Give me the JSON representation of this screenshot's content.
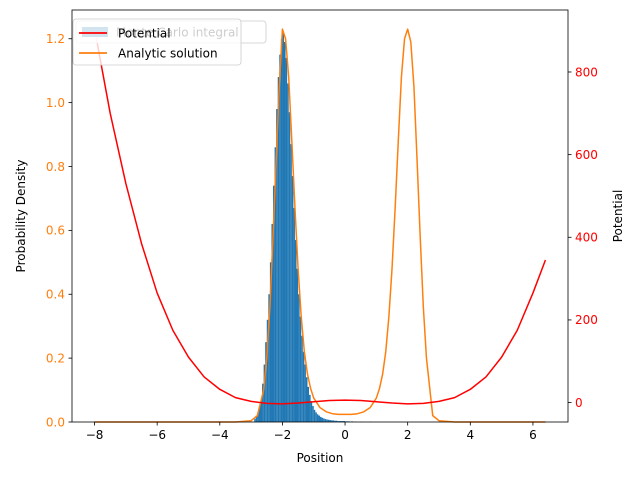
{
  "chart_data": {
    "type": "line",
    "title": "",
    "xlabel": "Position",
    "ylabel": "Probability Density",
    "y2label": "Potential",
    "xlim": [
      -8.72,
      7.12
    ],
    "ylim": [
      0,
      1.29
    ],
    "y2lim": [
      -47,
      950
    ],
    "xticks": [
      -8,
      -6,
      -4,
      -2,
      0,
      2,
      4,
      6
    ],
    "xtick_labels": [
      "−8",
      "−6",
      "−4",
      "−2",
      "0",
      "2",
      "4",
      "6"
    ],
    "yticks": [
      0.0,
      0.2,
      0.4,
      0.6,
      0.8,
      1.0,
      1.2
    ],
    "ytick_labels": [
      "0.0",
      "0.2",
      "0.4",
      "0.6",
      "0.8",
      "1.0",
      "1.2"
    ],
    "y2ticks": [
      0,
      200,
      400,
      600,
      800
    ],
    "y2tick_labels": [
      "0",
      "200",
      "400",
      "600",
      "800"
    ],
    "grid": false,
    "legend_position": "top-left",
    "colors": {
      "histogram": "#1f77b4",
      "analytic": "#ff7f0e",
      "potential": "#ff0000",
      "left_ticks": "#ff7f0e",
      "right_ticks": "#ff0000"
    },
    "legend": [
      {
        "label": "Potential",
        "color": "#ff0000",
        "kind": "line"
      },
      {
        "label": "Monte Carlo integral",
        "color": "#1f77b4",
        "kind": "patch"
      },
      {
        "label": "Analytic solution",
        "color": "#ff7f0e",
        "kind": "line"
      }
    ],
    "series": [
      {
        "name": "Monte Carlo integral",
        "kind": "histogram",
        "axis": "left",
        "bin_width": 0.05,
        "bins": [
          [
            -2.9,
            0.01
          ],
          [
            -2.85,
            0.02
          ],
          [
            -2.8,
            0.03
          ],
          [
            -2.75,
            0.05
          ],
          [
            -2.7,
            0.07
          ],
          [
            -2.65,
            0.12
          ],
          [
            -2.6,
            0.18
          ],
          [
            -2.55,
            0.25
          ],
          [
            -2.5,
            0.32
          ],
          [
            -2.45,
            0.4
          ],
          [
            -2.4,
            0.5
          ],
          [
            -2.35,
            0.62
          ],
          [
            -2.3,
            0.74
          ],
          [
            -2.25,
            0.86
          ],
          [
            -2.2,
            0.98
          ],
          [
            -2.15,
            1.08
          ],
          [
            -2.1,
            1.15
          ],
          [
            -2.05,
            1.2
          ],
          [
            -2.0,
            1.22
          ],
          [
            -1.95,
            1.19
          ],
          [
            -1.9,
            1.14
          ],
          [
            -1.85,
            1.06
          ],
          [
            -1.8,
            0.97
          ],
          [
            -1.75,
            0.87
          ],
          [
            -1.7,
            0.77
          ],
          [
            -1.65,
            0.67
          ],
          [
            -1.6,
            0.57
          ],
          [
            -1.55,
            0.48
          ],
          [
            -1.5,
            0.4
          ],
          [
            -1.45,
            0.33
          ],
          [
            -1.4,
            0.27
          ],
          [
            -1.35,
            0.22
          ],
          [
            -1.3,
            0.18
          ],
          [
            -1.25,
            0.14
          ],
          [
            -1.2,
            0.11
          ],
          [
            -1.15,
            0.085
          ],
          [
            -1.1,
            0.065
          ],
          [
            -1.05,
            0.05
          ],
          [
            -1.0,
            0.038
          ],
          [
            -0.95,
            0.03
          ],
          [
            -0.9,
            0.024
          ],
          [
            -0.85,
            0.02
          ],
          [
            -0.8,
            0.016
          ],
          [
            -0.75,
            0.013
          ],
          [
            -0.7,
            0.011
          ],
          [
            -0.65,
            0.009
          ],
          [
            -0.6,
            0.008
          ],
          [
            -0.55,
            0.007
          ],
          [
            -0.5,
            0.006
          ],
          [
            -0.45,
            0.005
          ],
          [
            -0.4,
            0.005
          ],
          [
            -0.35,
            0.004
          ],
          [
            -0.3,
            0.004
          ],
          [
            -0.25,
            0.003
          ],
          [
            -0.2,
            0.003
          ],
          [
            -0.15,
            0.003
          ],
          [
            -0.1,
            0.003
          ],
          [
            -0.05,
            0.003
          ],
          [
            0.0,
            0.002
          ],
          [
            0.05,
            0.002
          ],
          [
            0.1,
            0.002
          ],
          [
            0.2,
            0.002
          ],
          [
            0.3,
            0.001
          ],
          [
            0.5,
            0.001
          ],
          [
            0.8,
            0.001
          ]
        ]
      },
      {
        "name": "Analytic solution",
        "kind": "line",
        "axis": "left",
        "x": [
          -8.0,
          -3.5,
          -3.0,
          -2.8,
          -2.6,
          -2.5,
          -2.4,
          -2.3,
          -2.2,
          -2.1,
          -2.0,
          -1.9,
          -1.8,
          -1.7,
          -1.6,
          -1.5,
          -1.4,
          -1.3,
          -1.2,
          -1.1,
          -1.0,
          -0.8,
          -0.6,
          -0.4,
          -0.2,
          0.0,
          0.2,
          0.4,
          0.6,
          0.8,
          1.0,
          1.1,
          1.2,
          1.3,
          1.4,
          1.5,
          1.6,
          1.7,
          1.8,
          1.9,
          2.0,
          2.1,
          2.2,
          2.3,
          2.4,
          2.5,
          2.6,
          2.8,
          3.0,
          3.5,
          6.4
        ],
        "y": [
          0.0,
          0.0,
          0.004,
          0.02,
          0.1,
          0.2,
          0.36,
          0.58,
          0.82,
          1.05,
          1.23,
          1.2,
          1.08,
          0.88,
          0.67,
          0.48,
          0.33,
          0.22,
          0.15,
          0.105,
          0.075,
          0.045,
          0.032,
          0.026,
          0.024,
          0.024,
          0.024,
          0.026,
          0.032,
          0.045,
          0.075,
          0.105,
          0.15,
          0.22,
          0.33,
          0.48,
          0.67,
          0.88,
          1.08,
          1.2,
          1.23,
          1.19,
          1.05,
          0.82,
          0.58,
          0.36,
          0.2,
          0.02,
          0.004,
          0.0,
          0.0
        ]
      },
      {
        "name": "Potential",
        "kind": "line",
        "axis": "right",
        "x": [
          -8.0,
          -7.5,
          -7.0,
          -6.5,
          -6.0,
          -5.5,
          -5.0,
          -4.5,
          -4.0,
          -3.5,
          -3.0,
          -2.5,
          -2.0,
          -1.5,
          -1.0,
          -0.5,
          0.0,
          0.5,
          1.0,
          1.5,
          2.0,
          2.5,
          3.0,
          3.5,
          4.0,
          4.5,
          5.0,
          5.5,
          6.0,
          6.4
        ],
        "y": [
          905,
          700,
          530,
          385,
          265,
          175,
          110,
          62,
          32,
          12,
          3,
          -2,
          -3,
          -1,
          2,
          5,
          6,
          5,
          2,
          -1,
          -3,
          -2,
          3,
          12,
          32,
          62,
          110,
          175,
          265,
          345
        ]
      }
    ]
  }
}
